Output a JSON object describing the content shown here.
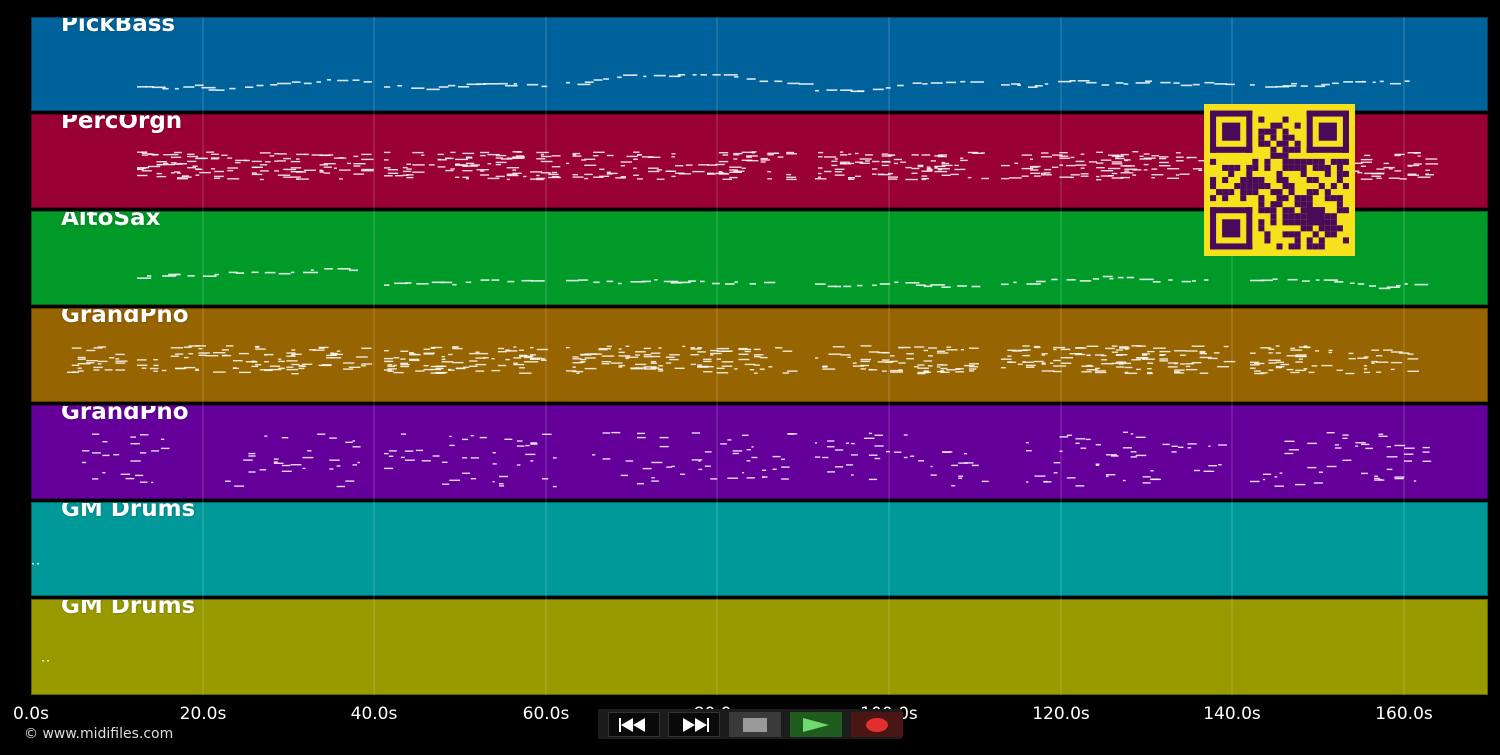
{
  "tracks": [
    {
      "name": "PickBass",
      "color": "#00629a"
    },
    {
      "name": "PercOrgn",
      "color": "#990033"
    },
    {
      "name": "AltoSax",
      "color": "#009a28"
    },
    {
      "name": "GrandPno",
      "color": "#966400"
    },
    {
      "name": "GrandPno",
      "color": "#640099"
    },
    {
      "name": "GM Drums",
      "color": "#00999a"
    },
    {
      "name": "GM Drums",
      "color": "#999900"
    }
  ],
  "timeline": {
    "ticks": [
      "0.0s",
      "20.0s",
      "40.0s",
      "60.0s",
      "80.0s",
      "100.0s",
      "120.0s",
      "140.0s",
      "160.0s"
    ]
  },
  "transport": {
    "rewind_icon": "rewind-icon",
    "fast_forward_icon": "fast-forward-icon",
    "stop_icon": "stop-icon",
    "play_icon": "play-icon",
    "record_icon": "record-icon"
  },
  "footer": {
    "copyright": "© www.midifiles.com"
  },
  "qr": {
    "color": "#f7e11d",
    "module_color": "#4a0a5a"
  }
}
